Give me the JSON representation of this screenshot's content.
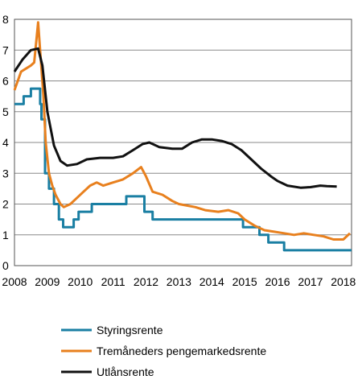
{
  "chart_data": {
    "type": "line",
    "title": "",
    "xlabel": "",
    "ylabel": "",
    "xlim": [
      2008,
      2018.25
    ],
    "ylim": [
      0,
      8
    ],
    "grid": "horizontal",
    "legend_position": "bottom",
    "x_ticks": [
      "2008",
      "2009",
      "2010",
      "2011",
      "2012",
      "2013",
      "2014",
      "2015",
      "2016",
      "2017",
      "2018"
    ],
    "y_ticks": [
      "0",
      "1",
      "2",
      "3",
      "4",
      "5",
      "6",
      "7",
      "8"
    ],
    "series": [
      {
        "name": "Styringsrente",
        "color": "#1a7fa3",
        "style": "step",
        "points": [
          [
            2008.0,
            5.25
          ],
          [
            2008.28,
            5.5
          ],
          [
            2008.5,
            5.75
          ],
          [
            2008.78,
            5.25
          ],
          [
            2008.82,
            4.75
          ],
          [
            2008.93,
            3.0
          ],
          [
            2009.05,
            2.5
          ],
          [
            2009.2,
            2.0
          ],
          [
            2009.35,
            1.5
          ],
          [
            2009.48,
            1.25
          ],
          [
            2009.8,
            1.5
          ],
          [
            2009.95,
            1.75
          ],
          [
            2010.35,
            2.0
          ],
          [
            2011.4,
            2.25
          ],
          [
            2011.95,
            1.75
          ],
          [
            2012.2,
            1.5
          ],
          [
            2014.95,
            1.25
          ],
          [
            2015.45,
            1.0
          ],
          [
            2015.72,
            0.75
          ],
          [
            2016.2,
            0.5
          ],
          [
            2018.25,
            0.5
          ]
        ]
      },
      {
        "name": "Tremåneders pengemarkedsrente",
        "color": "#e8801e",
        "style": "line",
        "points": [
          [
            2008.0,
            5.7
          ],
          [
            2008.1,
            6.0
          ],
          [
            2008.2,
            6.3
          ],
          [
            2008.35,
            6.4
          ],
          [
            2008.5,
            6.5
          ],
          [
            2008.6,
            6.6
          ],
          [
            2008.72,
            7.9
          ],
          [
            2008.8,
            6.7
          ],
          [
            2008.88,
            5.5
          ],
          [
            2008.95,
            4.0
          ],
          [
            2009.05,
            3.0
          ],
          [
            2009.15,
            2.6
          ],
          [
            2009.25,
            2.3
          ],
          [
            2009.4,
            2.0
          ],
          [
            2009.5,
            1.9
          ],
          [
            2009.7,
            2.0
          ],
          [
            2009.9,
            2.2
          ],
          [
            2010.1,
            2.4
          ],
          [
            2010.3,
            2.6
          ],
          [
            2010.5,
            2.7
          ],
          [
            2010.7,
            2.6
          ],
          [
            2011.0,
            2.7
          ],
          [
            2011.3,
            2.8
          ],
          [
            2011.6,
            3.0
          ],
          [
            2011.85,
            3.2
          ],
          [
            2012.0,
            2.9
          ],
          [
            2012.2,
            2.4
          ],
          [
            2012.5,
            2.3
          ],
          [
            2012.8,
            2.1
          ],
          [
            2013.0,
            2.0
          ],
          [
            2013.5,
            1.9
          ],
          [
            2013.8,
            1.8
          ],
          [
            2014.2,
            1.75
          ],
          [
            2014.5,
            1.8
          ],
          [
            2014.8,
            1.7
          ],
          [
            2015.0,
            1.5
          ],
          [
            2015.3,
            1.3
          ],
          [
            2015.6,
            1.15
          ],
          [
            2015.9,
            1.1
          ],
          [
            2016.2,
            1.05
          ],
          [
            2016.5,
            1.0
          ],
          [
            2016.8,
            1.05
          ],
          [
            2017.1,
            1.0
          ],
          [
            2017.4,
            0.95
          ],
          [
            2017.7,
            0.85
          ],
          [
            2018.0,
            0.85
          ],
          [
            2018.2,
            1.05
          ]
        ]
      },
      {
        "name": "Utlånsrente",
        "color": "#111111",
        "style": "line",
        "points": [
          [
            2008.0,
            6.3
          ],
          [
            2008.25,
            6.7
          ],
          [
            2008.5,
            7.0
          ],
          [
            2008.72,
            7.05
          ],
          [
            2008.85,
            6.5
          ],
          [
            2009.0,
            5.0
          ],
          [
            2009.2,
            3.9
          ],
          [
            2009.4,
            3.4
          ],
          [
            2009.6,
            3.25
          ],
          [
            2009.9,
            3.3
          ],
          [
            2010.2,
            3.45
          ],
          [
            2010.6,
            3.5
          ],
          [
            2011.0,
            3.5
          ],
          [
            2011.3,
            3.55
          ],
          [
            2011.6,
            3.75
          ],
          [
            2011.9,
            3.95
          ],
          [
            2012.1,
            4.0
          ],
          [
            2012.4,
            3.85
          ],
          [
            2012.8,
            3.8
          ],
          [
            2013.1,
            3.8
          ],
          [
            2013.4,
            4.0
          ],
          [
            2013.7,
            4.1
          ],
          [
            2014.0,
            4.1
          ],
          [
            2014.3,
            4.05
          ],
          [
            2014.6,
            3.95
          ],
          [
            2014.9,
            3.75
          ],
          [
            2015.2,
            3.45
          ],
          [
            2015.5,
            3.15
          ],
          [
            2015.8,
            2.9
          ],
          [
            2016.0,
            2.75
          ],
          [
            2016.3,
            2.6
          ],
          [
            2016.7,
            2.53
          ],
          [
            2017.0,
            2.55
          ],
          [
            2017.3,
            2.6
          ],
          [
            2017.5,
            2.58
          ],
          [
            2017.8,
            2.57
          ]
        ]
      }
    ]
  }
}
